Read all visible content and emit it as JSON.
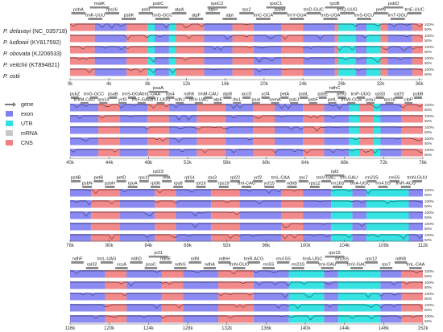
{
  "species": [
    "P. delavayi",
    "P. ludlowii",
    "P. obovata",
    "P. veitchii",
    "P. ostii"
  ],
  "accessions": [
    "(NC_035718)",
    "(KY817592)",
    "(KJ206533)",
    "(KT894821)",
    ""
  ],
  "legend": {
    "items": [
      {
        "label": "gene",
        "color": "#7a7a7a",
        "kind": "arrow"
      },
      {
        "label": "exon",
        "color": "#8080f0",
        "kind": "box"
      },
      {
        "label": "UTR",
        "color": "#33e0e0",
        "kind": "box"
      },
      {
        "label": "mRNA",
        "color": "#c8c8c8",
        "kind": "box"
      },
      {
        "label": "CNS",
        "color": "#f08080",
        "kind": "box"
      }
    ]
  },
  "pct_labels": [
    "100%",
    "50%"
  ],
  "panels": [
    {
      "ticks": [
        "0k",
        "4k",
        "8k",
        "12k",
        "16k",
        "20k",
        "24k",
        "28k",
        "32k",
        "36k"
      ],
      "gene_labels_top": [
        "matK",
        "psbC",
        "rpoC2",
        "rpoC1",
        "rpoB",
        "psbD"
      ],
      "gene_labels": [
        "psbA",
        "trnK-UUU",
        "rps16",
        "psbK",
        "psbI",
        "trnG-GCC",
        "atpA",
        "atpF",
        "atpH",
        "atpI",
        "rps2",
        "trnC-GCA",
        "psbM",
        "trnY-GUA",
        "trnD-GUC",
        "trnS-UGA",
        "trnQ-UUG",
        "trnS-GCU",
        "petN",
        "trnT-GGU",
        "trnE-UUC"
      ],
      "segments": [
        [
          0.0,
          0.07,
          "c"
        ],
        [
          0.07,
          0.16,
          "e"
        ],
        [
          0.16,
          0.22,
          "c"
        ],
        [
          0.22,
          0.3,
          "e"
        ],
        [
          0.3,
          0.38,
          "c"
        ],
        [
          0.38,
          0.46,
          "e"
        ],
        [
          0.46,
          0.52,
          "c"
        ],
        [
          0.52,
          0.6,
          "e"
        ],
        [
          0.6,
          0.66,
          "c"
        ],
        [
          0.66,
          0.75,
          "e"
        ],
        [
          0.75,
          0.79,
          "c"
        ],
        [
          0.79,
          0.86,
          "e"
        ],
        [
          0.86,
          0.9,
          "c"
        ],
        [
          0.9,
          0.97,
          "e"
        ],
        [
          0.97,
          1.0,
          "c"
        ]
      ],
      "utr": [
        0.22,
        0.24,
        0.28,
        0.3,
        0.76,
        0.81,
        0.84,
        0.88
      ]
    },
    {
      "ticks": [
        "40k",
        "44k",
        "48k",
        "52k",
        "56k",
        "60k",
        "64k",
        "68k",
        "72k",
        "76k"
      ],
      "gene_labels_top": [
        "psaA",
        "ndhC"
      ],
      "gene_labels": [
        "psbZ",
        "trnfM-CAU",
        "trnG-GCC",
        "rps14",
        "psaB",
        "ycf3",
        "trnS-GGA",
        "trnF-GAA",
        "trnL-UAA",
        "trnT-UGU",
        "rps4",
        "ndhJ",
        "ndhK",
        "trnV-UAC",
        "trnM-CAU",
        "atpE",
        "atpB",
        "rbcL",
        "accD",
        "psaI",
        "ycf4",
        "cemA",
        "petA",
        "psbJ",
        "psbL",
        "psbF",
        "psbE",
        "petL",
        "petG",
        "trnW-CCA",
        "trnP-UGG",
        "psaJ",
        "rpl33",
        "rps18",
        "rpl20",
        "clpP",
        "psbB"
      ],
      "segments": [
        [
          0.0,
          0.08,
          "e"
        ],
        [
          0.08,
          0.14,
          "c"
        ],
        [
          0.14,
          0.22,
          "e"
        ],
        [
          0.22,
          0.28,
          "c"
        ],
        [
          0.28,
          0.36,
          "e"
        ],
        [
          0.36,
          0.44,
          "c"
        ],
        [
          0.44,
          0.52,
          "e"
        ],
        [
          0.52,
          0.58,
          "c"
        ],
        [
          0.58,
          0.66,
          "e"
        ],
        [
          0.66,
          0.72,
          "c"
        ],
        [
          0.72,
          0.8,
          "e"
        ],
        [
          0.8,
          0.86,
          "c"
        ],
        [
          0.86,
          0.94,
          "e"
        ],
        [
          0.94,
          1.0,
          "c"
        ]
      ],
      "utr": [
        0.79,
        0.82,
        0.86,
        0.88
      ]
    },
    {
      "ticks": [
        "76k",
        "80k",
        "84k",
        "88k",
        "92k",
        "96k",
        "100k",
        "104k",
        "108k",
        "112k"
      ],
      "gene_labels_top": [
        "rpl23",
        "rpl2"
      ],
      "gene_labels": [
        "psbB",
        "psbN",
        "petB",
        "psbH",
        "petD",
        "rpoA",
        "rps11",
        "rpl36",
        "infA",
        "rps8",
        "rpl14",
        "rpl16",
        "rps3",
        "rps19",
        "rpl22",
        "trnI-CAU",
        "ycf2",
        "ycf15",
        "trnL-CAA",
        "ndhB",
        "rps7",
        "rps12",
        "trnV-GAC",
        "rrn16S",
        "trnI-GAU",
        "trnA-UGC",
        "rrn23S",
        "rrn4.5S",
        "rrn5S",
        "trnR-ACG",
        "trnN-GUU"
      ],
      "segments": [
        [
          0.0,
          0.06,
          "e"
        ],
        [
          0.06,
          0.14,
          "c"
        ],
        [
          0.14,
          0.24,
          "e"
        ],
        [
          0.24,
          0.3,
          "c"
        ],
        [
          0.3,
          0.4,
          "e"
        ],
        [
          0.4,
          0.48,
          "c"
        ],
        [
          0.48,
          0.6,
          "e"
        ],
        [
          0.6,
          0.66,
          "c"
        ],
        [
          0.66,
          0.74,
          "e"
        ],
        [
          0.74,
          0.8,
          "u"
        ],
        [
          0.8,
          0.84,
          "e"
        ],
        [
          0.84,
          0.96,
          "u"
        ],
        [
          0.96,
          1.0,
          "e"
        ]
      ],
      "utr": []
    },
    {
      "ticks": [
        "116k",
        "120k",
        "124k",
        "128k",
        "132k",
        "136k",
        "140k",
        "144k",
        "148k",
        "152k"
      ],
      "gene_labels_top": [
        "ycf1",
        "rps15"
      ],
      "gene_labels": [
        "ndhF",
        "rpl32",
        "trnL-UAG",
        "ccsA",
        "ndhD",
        "psaC",
        "ndhE",
        "ndhG",
        "ndhI",
        "ndhA",
        "ndhH",
        "trnN-GUU",
        "trnR-ACG",
        "rrn5S",
        "rrn4.5S",
        "rrn23S",
        "trnA-UGC",
        "trnI-GAU",
        "rrn16S",
        "trnV-GAC",
        "rps12",
        "rps7",
        "ndhB",
        "trnL-CAA"
      ],
      "segments": [
        [
          0.0,
          0.1,
          "e"
        ],
        [
          0.1,
          0.16,
          "c"
        ],
        [
          0.16,
          0.26,
          "e"
        ],
        [
          0.26,
          0.32,
          "c"
        ],
        [
          0.32,
          0.42,
          "e"
        ],
        [
          0.42,
          0.52,
          "c"
        ],
        [
          0.52,
          0.62,
          "e"
        ],
        [
          0.62,
          0.72,
          "u"
        ],
        [
          0.72,
          0.76,
          "e"
        ],
        [
          0.76,
          0.88,
          "u"
        ],
        [
          0.88,
          0.94,
          "e"
        ],
        [
          0.94,
          1.0,
          "c"
        ]
      ],
      "utr": []
    }
  ]
}
